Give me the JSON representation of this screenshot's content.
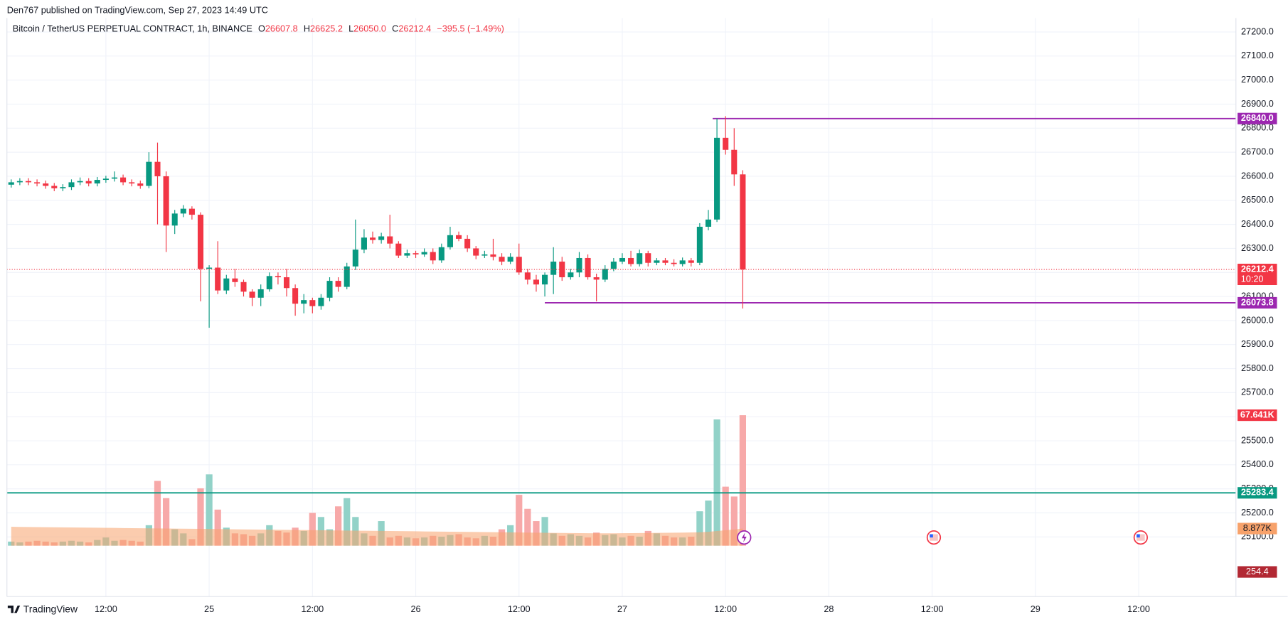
{
  "header": {
    "publisher": "Den767 published on TradingView.com, Sep 27, 2023 14:49 UTC",
    "brand": "TradingView"
  },
  "chart_data": {
    "type": "candlestick",
    "title": "Bitcoin / TetherUS PERPETUAL CONTRACT, 1h, BINANCE",
    "ohlc_legend": [
      {
        "key": "O",
        "text": "26607.8"
      },
      {
        "key": "H",
        "text": "26625.2"
      },
      {
        "key": "L",
        "text": "26050.0"
      },
      {
        "key": "C",
        "text": "26212.4"
      }
    ],
    "change": "−395.5 (−1.49%)",
    "x": [
      1,
      2,
      3,
      4,
      5,
      6,
      7,
      8,
      9,
      10,
      11,
      12,
      13,
      14,
      15,
      16,
      17,
      18,
      19,
      20,
      21,
      22,
      23,
      24,
      25,
      26,
      27,
      28,
      29,
      30,
      31,
      32,
      33,
      34,
      35,
      36,
      37,
      38,
      39,
      40,
      41,
      42,
      43,
      44,
      45,
      46,
      47,
      48,
      49,
      50,
      51,
      52,
      53,
      54,
      55,
      56,
      57,
      58,
      59,
      60,
      61,
      62,
      63,
      64,
      65,
      66,
      67,
      68,
      69,
      70,
      71,
      72,
      73,
      74,
      75,
      76,
      77,
      78,
      79,
      80,
      81,
      82,
      83,
      84,
      85,
      86
    ],
    "open": [
      26565,
      26575,
      26580,
      26575,
      26570,
      26560,
      26550,
      26555,
      26575,
      26580,
      26570,
      26585,
      26590,
      26595,
      26575,
      26570,
      26560,
      26660,
      26600,
      26395,
      26445,
      26465,
      26440,
      26215,
      26220,
      26125,
      26175,
      26160,
      26120,
      26095,
      26130,
      26185,
      26180,
      26135,
      26070,
      26085,
      26060,
      26095,
      26165,
      26140,
      26225,
      26295,
      26345,
      26335,
      26350,
      26320,
      26270,
      26280,
      26275,
      26285,
      26250,
      26305,
      26355,
      26340,
      26300,
      26270,
      26275,
      26265,
      26245,
      26265,
      26200,
      26170,
      26150,
      26190,
      26245,
      26180,
      26200,
      26260,
      26180,
      26170,
      26215,
      26245,
      26260,
      26235,
      26280,
      26240,
      26250,
      26240,
      26235,
      26250,
      26240,
      26390,
      26420,
      26760,
      26710,
      26607.8
    ],
    "high": [
      26587,
      26592,
      26592,
      26587,
      26582,
      26572,
      26567,
      26587,
      26595,
      26592,
      26597,
      26602,
      26620,
      26607,
      26587,
      26582,
      26700,
      26740,
      26620,
      26460,
      26480,
      26475,
      26450,
      26230,
      26330,
      26190,
      26215,
      26170,
      26130,
      26150,
      26200,
      26200,
      26215,
      26150,
      26110,
      26095,
      26110,
      26180,
      26180,
      26240,
      26420,
      26380,
      26370,
      26365,
      26440,
      26330,
      26295,
      26290,
      26300,
      26300,
      26320,
      26390,
      26370,
      26355,
      26310,
      26290,
      26340,
      26280,
      26280,
      26320,
      26215,
      26190,
      26200,
      26305,
      26265,
      26215,
      26285,
      26275,
      26195,
      26230,
      26260,
      26280,
      26290,
      26295,
      26290,
      26260,
      26260,
      26255,
      26262,
      26260,
      26405,
      26460,
      26840,
      26850,
      26800,
      26625.2
    ],
    "low": [
      26553,
      26563,
      26563,
      26558,
      26548,
      26538,
      26538,
      26543,
      26563,
      26558,
      26558,
      26573,
      26578,
      26563,
      26558,
      26548,
      26550,
      26400,
      26285,
      26360,
      26430,
      26420,
      26080,
      25970,
      26110,
      26110,
      26140,
      26100,
      26060,
      26060,
      26120,
      26150,
      26100,
      26020,
      26030,
      26030,
      26045,
      26080,
      26120,
      26130,
      26210,
      26280,
      26320,
      26320,
      26300,
      26260,
      26260,
      26260,
      26265,
      26235,
      26240,
      26295,
      26330,
      26285,
      26255,
      26260,
      26250,
      26230,
      26235,
      26190,
      26150,
      26120,
      26100,
      26110,
      26165,
      26170,
      26180,
      26170,
      26080,
      26160,
      26205,
      26235,
      26225,
      26225,
      26225,
      26230,
      26230,
      26225,
      26225,
      26225,
      26230,
      26375,
      26410,
      26690,
      26560,
      26050
    ],
    "close": [
      26575,
      26580,
      26575,
      26570,
      26560,
      26550,
      26555,
      26575,
      26580,
      26570,
      26585,
      26590,
      26595,
      26575,
      26570,
      26560,
      26660,
      26600,
      26395,
      26445,
      26465,
      26440,
      26215,
      26220,
      26125,
      26175,
      26160,
      26120,
      26095,
      26130,
      26185,
      26180,
      26135,
      26070,
      26085,
      26060,
      26095,
      26165,
      26140,
      26225,
      26295,
      26345,
      26335,
      26350,
      26320,
      26270,
      26280,
      26275,
      26285,
      26250,
      26305,
      26355,
      26340,
      26300,
      26270,
      26275,
      26265,
      26245,
      26265,
      26200,
      26170,
      26150,
      26190,
      26245,
      26180,
      26200,
      26260,
      26180,
      26170,
      26215,
      26245,
      26260,
      26235,
      26280,
      26240,
      26250,
      26240,
      26235,
      26250,
      26240,
      26390,
      26420,
      26760,
      26710,
      26607.8,
      26212.4
    ],
    "up_color": "#089981",
    "down_color": "#f23645",
    "volume": {
      "values": [
        2125,
        1700,
        2125,
        2550,
        2125,
        1700,
        2125,
        2550,
        2125,
        1700,
        2975,
        4250,
        2550,
        2975,
        2550,
        2125,
        10625,
        33575,
        24650,
        8500,
        6375,
        3400,
        29750,
        36975,
        18700,
        9350,
        6375,
        5950,
        5100,
        6375,
        10625,
        7650,
        6800,
        9350,
        7650,
        17000,
        14875,
        8500,
        20400,
        24650,
        14875,
        6375,
        5100,
        12750,
        4250,
        5100,
        4250,
        3825,
        4250,
        5100,
        4675,
        5525,
        5950,
        4250,
        3825,
        5100,
        4675,
        8500,
        10625,
        26350,
        19125,
        12750,
        14875,
        6375,
        5100,
        5950,
        5100,
        4250,
        6800,
        5525,
        5950,
        4250,
        5100,
        4675,
        7650,
        6375,
        5100,
        4250,
        4250,
        4675,
        17850,
        23375,
        65450,
        30600,
        25500,
        67641
      ],
      "label": "67.641K",
      "up_color": "#92d2c8",
      "down_color": "#f7a9a9"
    },
    "volume_ma": {
      "values": [
        9800,
        9750,
        9700,
        9650,
        9600,
        9550,
        9500,
        9450,
        9400,
        9350,
        9300,
        9250,
        9200,
        9150,
        9100,
        9050,
        9000,
        8950,
        8900,
        8850,
        8800,
        8750,
        8700,
        8650,
        8600,
        8550,
        8500,
        8450,
        8400,
        8350,
        8300,
        8250,
        8200,
        8150,
        8100,
        8050,
        8000,
        7950,
        7900,
        7850,
        7800,
        7750,
        7700,
        7650,
        7600,
        7550,
        7500,
        7450,
        7400,
        7350,
        7300,
        7250,
        7200,
        7150,
        7100,
        7050,
        7000,
        6950,
        6900,
        6850,
        6800,
        6750,
        6700,
        6650,
        6600,
        6550,
        6500,
        6450,
        6400,
        6400,
        6400,
        6450,
        6500,
        6550,
        6600,
        6650,
        6700,
        6750,
        6800,
        6850,
        6950,
        7200,
        7600,
        8000,
        8400,
        8877
      ],
      "label": "8.877K",
      "color": "#f7a26b"
    },
    "levels": [
      {
        "value": 26840,
        "label": "26840.0",
        "color": "#9c27b0",
        "start_x": 82.5
      },
      {
        "value": 26073.8,
        "label": "26073.8",
        "color": "#9c27b0",
        "start_x": 63
      },
      {
        "value": 25283.4,
        "label": "25283.4",
        "color": "#089981"
      }
    ],
    "last_price_countdown": "10:20",
    "extra_badge": "254.4",
    "xlim": [
      0.5,
      143.3
    ],
    "xticks": [
      {
        "value": 12,
        "label": "12:00"
      },
      {
        "value": 24,
        "label": "25"
      },
      {
        "value": 36,
        "label": "12:00"
      },
      {
        "value": 48,
        "label": "26"
      },
      {
        "value": 60,
        "label": "12:00"
      },
      {
        "value": 72,
        "label": "27"
      },
      {
        "value": 84,
        "label": "12:00"
      },
      {
        "value": 96,
        "label": "28"
      },
      {
        "value": 108,
        "label": "12:00"
      },
      {
        "value": 120,
        "label": "29"
      },
      {
        "value": 132,
        "label": "12:00"
      }
    ],
    "ylim": [
      24852,
      27258
    ],
    "yticks": [
      {
        "value": 25100,
        "label": "25100.0"
      },
      {
        "value": 25200,
        "label": "25200.0"
      },
      {
        "value": 25300,
        "label": "25300.0"
      },
      {
        "value": 25400,
        "label": "25400.0"
      },
      {
        "value": 25500,
        "label": "25500.0"
      },
      {
        "value": 25600,
        "label": "25600.0"
      },
      {
        "value": 25700,
        "label": "25700.0"
      },
      {
        "value": 25800,
        "label": "25800.0"
      },
      {
        "value": 25900,
        "label": "25900.0"
      },
      {
        "value": 26000,
        "label": "26000.0"
      },
      {
        "value": 26100,
        "label": "26100.0"
      },
      {
        "value": 26200,
        "label": "26200.0"
      },
      {
        "value": 26300,
        "label": "26300.0"
      },
      {
        "value": 26400,
        "label": "26400.0"
      },
      {
        "value": 26500,
        "label": "26500.0"
      },
      {
        "value": 26600,
        "label": "26600.0"
      },
      {
        "value": 26700,
        "label": "26700.0"
      },
      {
        "value": 26800,
        "label": "26800.0"
      },
      {
        "value": 26900,
        "label": "26900.0"
      },
      {
        "value": 27000,
        "label": "27000.0"
      },
      {
        "value": 27100,
        "label": "27100.0"
      },
      {
        "value": 27200,
        "label": "27200.0"
      }
    ],
    "grid": true
  }
}
